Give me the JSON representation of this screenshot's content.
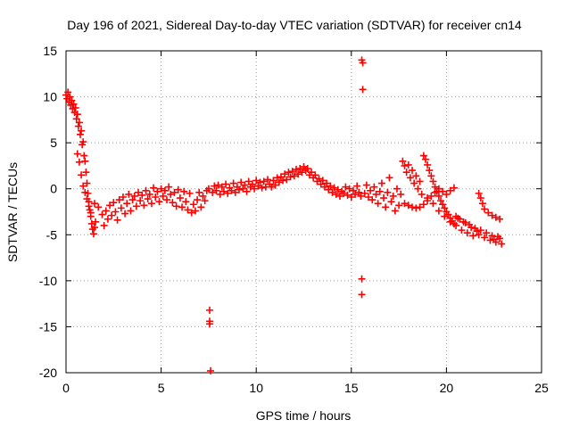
{
  "chart_data": {
    "type": "scatter",
    "title": "Day 196 of 2021, Sidereal Day-to-day VTEC variation (SDTVAR) for receiver cn14",
    "xlabel": "GPS time / hours",
    "ylabel": "SDTVAR / TECUs",
    "xlim": [
      0,
      25
    ],
    "ylim": [
      -20,
      15
    ],
    "xticks": [
      0,
      5,
      10,
      15,
      20,
      25
    ],
    "yticks": [
      -20,
      -15,
      -10,
      -5,
      0,
      5,
      10,
      15
    ],
    "grid": true,
    "marker": "+",
    "color": "#ff0000",
    "series": [
      {
        "name": "SDTVAR",
        "points": [
          [
            0.0,
            10.2
          ],
          [
            0.05,
            9.8
          ],
          [
            0.1,
            10.5
          ],
          [
            0.15,
            9.4
          ],
          [
            0.2,
            10.0
          ],
          [
            0.25,
            9.1
          ],
          [
            0.3,
            9.6
          ],
          [
            0.35,
            8.7
          ],
          [
            0.4,
            9.2
          ],
          [
            0.45,
            8.3
          ],
          [
            0.5,
            8.8
          ],
          [
            0.55,
            7.6
          ],
          [
            0.6,
            8.1
          ],
          [
            0.65,
            6.8
          ],
          [
            0.7,
            7.2
          ],
          [
            0.75,
            5.9
          ],
          [
            0.8,
            6.3
          ],
          [
            0.85,
            4.8
          ],
          [
            0.9,
            5.1
          ],
          [
            0.95,
            3.6
          ],
          [
            1.0,
            3.0
          ],
          [
            1.05,
            1.8
          ],
          [
            1.1,
            0.6
          ],
          [
            1.15,
            -0.5
          ],
          [
            1.2,
            -1.4
          ],
          [
            1.25,
            -2.3
          ],
          [
            1.3,
            -3.0
          ],
          [
            1.35,
            -3.8
          ],
          [
            1.4,
            -4.4
          ],
          [
            1.45,
            -4.9
          ],
          [
            1.5,
            -4.2
          ],
          [
            1.55,
            -3.6
          ],
          [
            0.6,
            3.8
          ],
          [
            0.7,
            2.9
          ],
          [
            0.8,
            1.5
          ],
          [
            0.9,
            0.3
          ],
          [
            1.0,
            -0.4
          ],
          [
            1.1,
            -1.1
          ],
          [
            1.2,
            -1.9
          ],
          [
            1.3,
            -2.6
          ],
          [
            1.5,
            -1.6
          ],
          [
            1.7,
            -2.0
          ],
          [
            1.9,
            -2.8
          ],
          [
            2.0,
            -4.0
          ],
          [
            2.1,
            -2.4
          ],
          [
            2.2,
            -3.3
          ],
          [
            2.3,
            -1.8
          ],
          [
            2.4,
            -2.9
          ],
          [
            2.5,
            -1.5
          ],
          [
            2.6,
            -2.5
          ],
          [
            2.7,
            -3.4
          ],
          [
            2.8,
            -1.2
          ],
          [
            2.9,
            -2.1
          ],
          [
            3.0,
            -0.9
          ],
          [
            3.1,
            -2.7
          ],
          [
            3.2,
            -1.6
          ],
          [
            3.3,
            -0.6
          ],
          [
            3.4,
            -2.4
          ],
          [
            3.5,
            -1.2
          ],
          [
            3.6,
            -0.8
          ],
          [
            3.7,
            -1.9
          ],
          [
            3.8,
            -0.4
          ],
          [
            3.9,
            -1.3
          ],
          [
            4.0,
            -0.7
          ],
          [
            4.1,
            -1.8
          ],
          [
            4.2,
            -0.2
          ],
          [
            4.3,
            -1.1
          ],
          [
            4.4,
            -0.6
          ],
          [
            4.5,
            -1.6
          ],
          [
            4.6,
            0.1
          ],
          [
            4.7,
            -0.9
          ],
          [
            4.8,
            -0.3
          ],
          [
            4.9,
            -1.4
          ],
          [
            5.0,
            0.0
          ],
          [
            5.1,
            -0.8
          ],
          [
            5.2,
            -0.2
          ],
          [
            5.3,
            -1.2
          ],
          [
            5.4,
            0.2
          ],
          [
            5.5,
            -0.6
          ],
          [
            5.6,
            -1.5
          ],
          [
            5.7,
            -0.4
          ],
          [
            5.8,
            -1.9
          ],
          [
            5.9,
            -0.1
          ],
          [
            6.0,
            -1.0
          ],
          [
            6.1,
            -2.0
          ],
          [
            6.2,
            -0.3
          ],
          [
            6.3,
            -1.4
          ],
          [
            6.4,
            -2.3
          ],
          [
            6.5,
            -0.5
          ],
          [
            6.6,
            -2.6
          ],
          [
            6.7,
            -1.7
          ],
          [
            6.8,
            -2.4
          ],
          [
            6.9,
            -1.2
          ],
          [
            7.0,
            -0.4
          ],
          [
            7.1,
            -2.0
          ],
          [
            7.2,
            -0.8
          ],
          [
            7.3,
            -1.3
          ],
          [
            7.4,
            -0.2
          ],
          [
            7.5,
            0.0
          ],
          [
            7.55,
            -13.2
          ],
          [
            7.55,
            -14.4
          ],
          [
            7.55,
            -14.7
          ],
          [
            7.6,
            -19.8
          ],
          [
            7.7,
            -0.4
          ],
          [
            7.8,
            0.3
          ],
          [
            7.9,
            -0.2
          ],
          [
            8.0,
            0.4
          ],
          [
            8.1,
            -0.6
          ],
          [
            8.2,
            0.2
          ],
          [
            8.3,
            -0.3
          ],
          [
            8.4,
            0.5
          ],
          [
            8.5,
            -0.5
          ],
          [
            8.6,
            0.1
          ],
          [
            8.7,
            -0.2
          ],
          [
            8.8,
            0.6
          ],
          [
            8.9,
            -0.4
          ],
          [
            9.0,
            0.2
          ],
          [
            9.1,
            -0.1
          ],
          [
            9.2,
            0.7
          ],
          [
            9.3,
            0.0
          ],
          [
            9.4,
            0.4
          ],
          [
            9.5,
            -0.3
          ],
          [
            9.6,
            0.8
          ],
          [
            9.7,
            0.2
          ],
          [
            9.8,
            0.5
          ],
          [
            9.9,
            0.0
          ],
          [
            10.0,
            0.9
          ],
          [
            10.1,
            0.3
          ],
          [
            10.2,
            0.7
          ],
          [
            10.3,
            0.1
          ],
          [
            10.4,
            0.8
          ],
          [
            10.5,
            0.2
          ],
          [
            10.6,
            1.0
          ],
          [
            10.7,
            0.5
          ],
          [
            10.8,
            0.2
          ],
          [
            10.9,
            0.9
          ],
          [
            11.0,
            0.4
          ],
          [
            11.1,
            1.2
          ],
          [
            11.2,
            0.7
          ],
          [
            11.3,
            1.3
          ],
          [
            11.4,
            0.9
          ],
          [
            11.5,
            1.6
          ],
          [
            11.6,
            1.0
          ],
          [
            11.7,
            1.8
          ],
          [
            11.8,
            1.3
          ],
          [
            11.9,
            1.9
          ],
          [
            12.0,
            1.4
          ],
          [
            12.1,
            2.1
          ],
          [
            12.2,
            1.6
          ],
          [
            12.3,
            2.2
          ],
          [
            12.4,
            1.8
          ],
          [
            12.5,
            2.4
          ],
          [
            12.6,
            2.0
          ],
          [
            12.7,
            2.2
          ],
          [
            12.8,
            1.5
          ],
          [
            12.9,
            1.8
          ],
          [
            13.0,
            1.2
          ],
          [
            13.1,
            1.5
          ],
          [
            13.2,
            0.8
          ],
          [
            13.3,
            1.1
          ],
          [
            13.4,
            0.5
          ],
          [
            13.5,
            0.9
          ],
          [
            13.6,
            0.2
          ],
          [
            13.7,
            0.6
          ],
          [
            13.8,
            -0.1
          ],
          [
            13.9,
            0.3
          ],
          [
            14.0,
            -0.4
          ],
          [
            14.1,
            0.1
          ],
          [
            14.2,
            -0.6
          ],
          [
            14.3,
            -0.1
          ],
          [
            14.4,
            -0.8
          ],
          [
            14.5,
            -0.3
          ],
          [
            14.6,
            -0.5
          ],
          [
            14.7,
            0.2
          ],
          [
            14.8,
            -0.7
          ],
          [
            14.9,
            0.0
          ],
          [
            15.0,
            -0.9
          ],
          [
            15.1,
            -0.2
          ],
          [
            15.2,
            -0.6
          ],
          [
            15.3,
            0.3
          ],
          [
            15.4,
            -0.4
          ],
          [
            15.5,
            -0.8
          ],
          [
            15.55,
            14.0
          ],
          [
            15.6,
            13.7
          ],
          [
            15.6,
            10.8
          ],
          [
            15.55,
            -9.8
          ],
          [
            15.55,
            -11.5
          ],
          [
            15.7,
            -0.5
          ],
          [
            15.8,
            0.4
          ],
          [
            15.9,
            -0.9
          ],
          [
            16.0,
            -0.2
          ],
          [
            16.1,
            -1.2
          ],
          [
            16.2,
            0.2
          ],
          [
            16.3,
            -0.6
          ],
          [
            16.4,
            -1.6
          ],
          [
            16.5,
            -0.3
          ],
          [
            16.6,
            0.6
          ],
          [
            16.7,
            -1.0
          ],
          [
            16.8,
            -2.0
          ],
          [
            16.9,
            -0.4
          ],
          [
            17.0,
            1.2
          ],
          [
            17.1,
            -1.4
          ],
          [
            17.2,
            -0.8
          ],
          [
            17.3,
            -2.4
          ],
          [
            17.4,
            0.0
          ],
          [
            17.5,
            -1.8
          ],
          [
            17.6,
            -0.6
          ],
          [
            17.7,
            3.0
          ],
          [
            17.8,
            2.5
          ],
          [
            17.9,
            1.8
          ],
          [
            18.0,
            2.6
          ],
          [
            18.1,
            1.2
          ],
          [
            18.2,
            2.0
          ],
          [
            18.3,
            0.6
          ],
          [
            18.4,
            1.4
          ],
          [
            18.5,
            0.0
          ],
          [
            18.6,
            0.8
          ],
          [
            18.7,
            -0.6
          ],
          [
            18.8,
            3.6
          ],
          [
            18.9,
            3.2
          ],
          [
            19.0,
            2.6
          ],
          [
            19.1,
            2.0
          ],
          [
            19.2,
            1.4
          ],
          [
            19.3,
            0.8
          ],
          [
            19.4,
            0.2
          ],
          [
            19.5,
            -0.3
          ],
          [
            19.6,
            -0.8
          ],
          [
            19.7,
            -1.3
          ],
          [
            19.8,
            -1.7
          ],
          [
            19.9,
            -2.1
          ],
          [
            20.0,
            -2.5
          ],
          [
            20.1,
            -2.8
          ],
          [
            20.2,
            -3.2
          ],
          [
            20.3,
            -3.5
          ],
          [
            20.4,
            -3.8
          ],
          [
            17.8,
            -1.6
          ],
          [
            18.0,
            -1.8
          ],
          [
            18.2,
            -2.0
          ],
          [
            18.4,
            -2.1
          ],
          [
            18.6,
            -2.0
          ],
          [
            18.8,
            -1.7
          ],
          [
            19.0,
            -1.3
          ],
          [
            19.2,
            -0.8
          ],
          [
            19.4,
            -0.4
          ],
          [
            19.6,
            0.0
          ],
          [
            19.8,
            -0.3
          ],
          [
            20.0,
            -0.6
          ],
          [
            20.2,
            -0.2
          ],
          [
            20.4,
            0.1
          ],
          [
            19.0,
            -1.0
          ],
          [
            19.3,
            -1.6
          ],
          [
            19.6,
            -2.4
          ],
          [
            19.9,
            -3.0
          ],
          [
            20.2,
            -3.6
          ],
          [
            20.5,
            -4.0
          ],
          [
            20.8,
            -4.5
          ],
          [
            21.1,
            -4.8
          ],
          [
            21.4,
            -5.1
          ],
          [
            21.7,
            -5.0
          ],
          [
            22.0,
            -5.3
          ],
          [
            22.3,
            -5.6
          ],
          [
            22.6,
            -5.8
          ],
          [
            22.8,
            -5.4
          ],
          [
            22.9,
            -6.0
          ],
          [
            20.6,
            -3.2
          ],
          [
            20.9,
            -3.6
          ],
          [
            21.2,
            -3.9
          ],
          [
            21.5,
            -4.3
          ],
          [
            21.8,
            -4.5
          ],
          [
            22.1,
            -4.8
          ],
          [
            22.4,
            -5.1
          ],
          [
            22.7,
            -5.2
          ],
          [
            21.7,
            -0.5
          ],
          [
            21.8,
            -1.0
          ],
          [
            21.9,
            -1.6
          ],
          [
            22.0,
            -2.2
          ],
          [
            22.2,
            -2.6
          ],
          [
            22.4,
            -2.9
          ],
          [
            22.6,
            -3.1
          ],
          [
            22.8,
            -3.3
          ],
          [
            20.5,
            -3.0
          ],
          [
            20.7,
            -3.3
          ],
          [
            21.0,
            -3.7
          ],
          [
            21.3,
            -4.2
          ],
          [
            21.6,
            -4.6
          ],
          [
            22.5,
            -5.5
          ]
        ]
      }
    ]
  }
}
